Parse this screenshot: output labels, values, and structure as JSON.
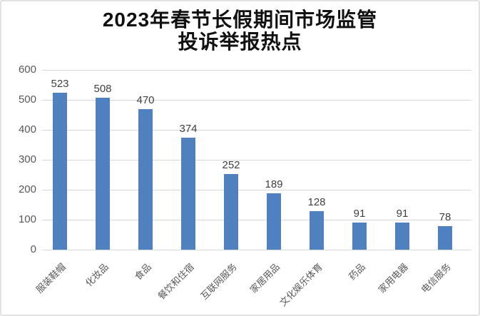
{
  "title": {
    "line1": "2023年春节长假期间市场监管",
    "line2": "投诉举报热点"
  },
  "chart_data": {
    "type": "bar",
    "title": "2023年春节长假期间市场监管投诉举报热点",
    "categories": [
      "服装鞋帽",
      "化妆品",
      "食品",
      "餐饮和住宿",
      "互联网服务",
      "家居用品",
      "文化娱乐体育",
      "药品",
      "家用电器",
      "电信服务"
    ],
    "values": [
      523,
      508,
      470,
      374,
      252,
      189,
      128,
      91,
      91,
      78
    ],
    "xlabel": "",
    "ylabel": "",
    "ylim": [
      0,
      600
    ],
    "yticks": [
      0,
      100,
      200,
      300,
      400,
      500,
      600
    ],
    "grid": "horizontal",
    "legend": "none",
    "data_labels_shown": true,
    "colors": {
      "bar": "#4E81BD",
      "value_label": "#404040",
      "axis_label": "#595959",
      "gridline": "#D8D8D8",
      "title": "#111111",
      "card_border": "#E2E2E2",
      "background": "#FFFFFF"
    }
  }
}
